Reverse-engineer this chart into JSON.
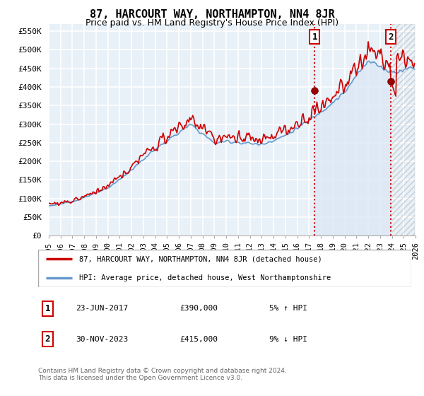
{
  "title": "87, HARCOURT WAY, NORTHAMPTON, NN4 8JR",
  "subtitle": "Price paid vs. HM Land Registry's House Price Index (HPI)",
  "ylabel_ticks": [
    "£0",
    "£50K",
    "£100K",
    "£150K",
    "£200K",
    "£250K",
    "£300K",
    "£350K",
    "£400K",
    "£450K",
    "£500K",
    "£550K"
  ],
  "ytick_values": [
    0,
    50000,
    100000,
    150000,
    200000,
    250000,
    300000,
    350000,
    400000,
    450000,
    500000,
    550000
  ],
  "ylim": [
    0,
    570000
  ],
  "xlim_start": 1995.0,
  "xlim_end": 2026.0,
  "sale1_date": 2017.47,
  "sale1_price": 390000,
  "sale1_label": "1",
  "sale2_date": 2023.92,
  "sale2_price": 415000,
  "sale2_label": "2",
  "red_line_color": "#cc0000",
  "blue_line_color": "#6699cc",
  "fill_color": "#dce8f5",
  "background_color": "#e8f0f8",
  "grid_color": "#ffffff",
  "hatch_color": "#999999",
  "legend_label1": "87, HARCOURT WAY, NORTHAMPTON, NN4 8JR (detached house)",
  "legend_label2": "HPI: Average price, detached house, West Northamptonshire",
  "annotation1_date": "23-JUN-2017",
  "annotation1_price": "£390,000",
  "annotation1_pct": "5% ↑ HPI",
  "annotation2_date": "30-NOV-2023",
  "annotation2_price": "£415,000",
  "annotation2_pct": "9% ↓ HPI",
  "footer": "Contains HM Land Registry data © Crown copyright and database right 2024.\nThis data is licensed under the Open Government Licence v3.0.",
  "title_fontsize": 11,
  "subtitle_fontsize": 9
}
